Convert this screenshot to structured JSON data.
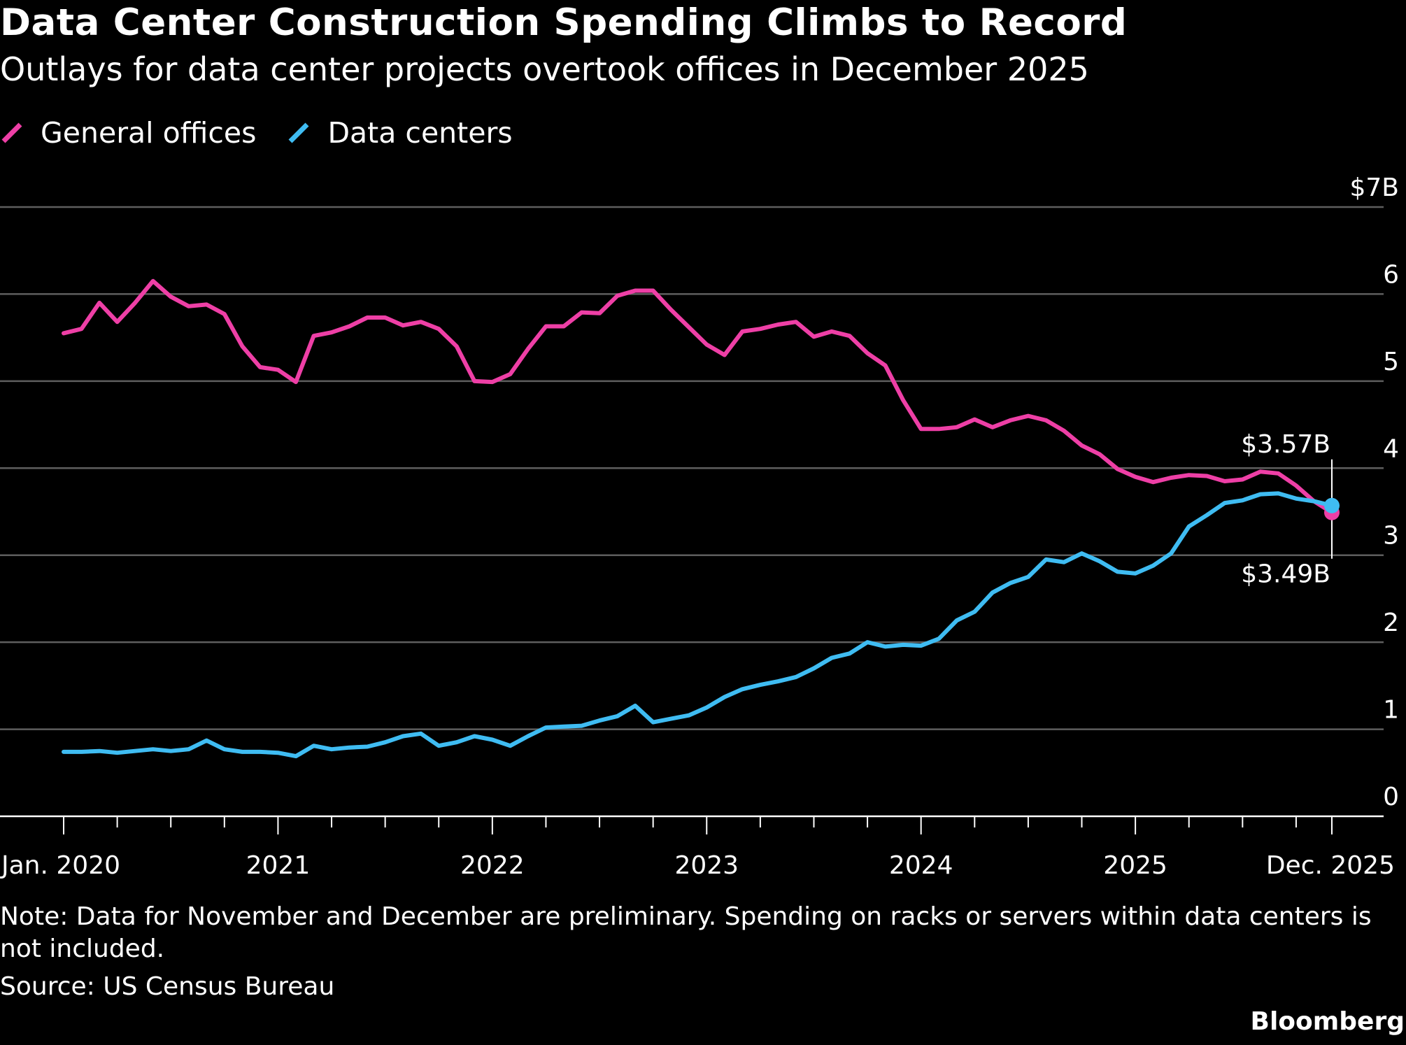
{
  "chart_data": {
    "type": "line",
    "title": "Data Center Construction Spending Climbs to Record",
    "subtitle": "Outlays for data center projects overtook offices in December 2025",
    "x_start": "2020-01",
    "x_end": "2025-12",
    "x_tick_labels": [
      {
        "label": "Jan. 2020",
        "month": "2020-01"
      },
      {
        "label": "2021",
        "month": "2021-01"
      },
      {
        "label": "2022",
        "month": "2022-01"
      },
      {
        "label": "2023",
        "month": "2023-01"
      },
      {
        "label": "2024",
        "month": "2024-01"
      },
      {
        "label": "2025",
        "month": "2025-01"
      },
      {
        "label": "Dec. 2025",
        "month": "2025-12"
      }
    ],
    "y_ticks": [
      {
        "value": 0,
        "label": "0"
      },
      {
        "value": 1,
        "label": "1"
      },
      {
        "value": 2,
        "label": "2"
      },
      {
        "value": 3,
        "label": "3"
      },
      {
        "value": 4,
        "label": "4"
      },
      {
        "value": 5,
        "label": "5"
      },
      {
        "value": 6,
        "label": "6"
      },
      {
        "value": 7,
        "label": "$7B"
      }
    ],
    "ylim": [
      0,
      7
    ],
    "grid": true,
    "legend_position": "top-left",
    "series": [
      {
        "name": "General offices",
        "color": "#ee3fa6",
        "values": [
          5.55,
          5.6,
          5.9,
          5.68,
          5.9,
          6.15,
          5.97,
          5.86,
          5.88,
          5.77,
          5.4,
          5.16,
          5.13,
          4.99,
          5.52,
          5.56,
          5.63,
          5.73,
          5.73,
          5.64,
          5.68,
          5.6,
          5.4,
          5.0,
          4.99,
          5.08,
          5.37,
          5.63,
          5.63,
          5.79,
          5.78,
          5.98,
          6.04,
          6.04,
          5.82,
          5.62,
          5.42,
          5.3,
          5.57,
          5.6,
          5.65,
          5.68,
          5.51,
          5.57,
          5.52,
          5.32,
          5.18,
          4.78,
          4.45,
          4.45,
          4.47,
          4.56,
          4.47,
          4.55,
          4.6,
          4.55,
          4.43,
          4.26,
          4.16,
          3.99,
          3.9,
          3.84,
          3.89,
          3.92,
          3.91,
          3.85,
          3.87,
          3.96,
          3.94,
          3.8,
          3.62,
          3.49
        ]
      },
      {
        "name": "Data centers",
        "color": "#3fbcf2",
        "values": [
          0.74,
          0.74,
          0.75,
          0.73,
          0.75,
          0.77,
          0.75,
          0.77,
          0.87,
          0.77,
          0.74,
          0.74,
          0.73,
          0.69,
          0.81,
          0.77,
          0.79,
          0.8,
          0.85,
          0.92,
          0.95,
          0.81,
          0.85,
          0.92,
          0.88,
          0.81,
          0.92,
          1.02,
          1.03,
          1.04,
          1.1,
          1.15,
          1.27,
          1.08,
          1.12,
          1.16,
          1.25,
          1.37,
          1.46,
          1.51,
          1.55,
          1.6,
          1.7,
          1.82,
          1.87,
          2.0,
          1.95,
          1.97,
          1.96,
          2.04,
          2.25,
          2.35,
          2.57,
          2.68,
          2.75,
          2.95,
          2.92,
          3.02,
          2.93,
          2.81,
          2.79,
          2.88,
          3.02,
          3.33,
          3.46,
          3.6,
          3.63,
          3.7,
          3.71,
          3.65,
          3.62,
          3.57
        ]
      }
    ],
    "annotations": [
      {
        "label": "$3.57B",
        "series": "Data centers",
        "month": "2025-12",
        "value": 3.57
      },
      {
        "label": "$3.49B",
        "series": "General offices",
        "month": "2025-12",
        "value": 3.49
      }
    ],
    "note": "Note: Data for November and December are preliminary. Spending on racks or servers within data centers is not included.",
    "source": "Source: US Census Bureau",
    "brand": "Bloomberg"
  }
}
